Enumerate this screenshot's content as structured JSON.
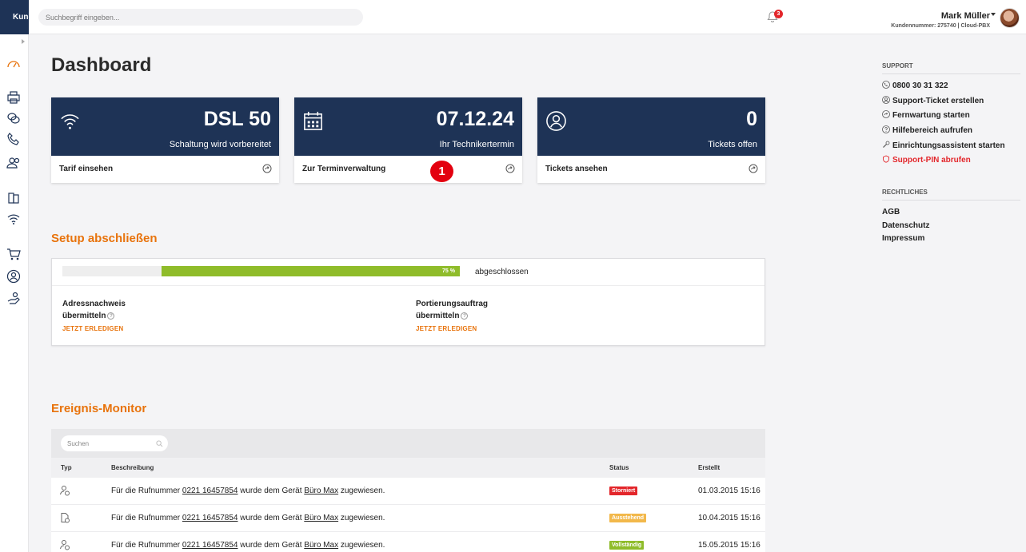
{
  "header": {
    "brand": "Kundenportal",
    "search_placeholder": "Suchbegriff eingeben...",
    "notification_count": "3",
    "user_name": "Mark Müller",
    "user_meta": "Kundennummer: 275740 | Cloud-PBX"
  },
  "page_title": "Dashboard",
  "cards": [
    {
      "icon": "wifi-icon",
      "value": "DSL 50",
      "subtitle": "Schaltung wird vorbereitet",
      "link": "Tarif einsehen"
    },
    {
      "icon": "calendar-icon",
      "value": "07.12.24",
      "subtitle": "Ihr Technikertermin",
      "link": "Zur Terminverwaltung"
    },
    {
      "icon": "user-circle-icon",
      "value": "0",
      "subtitle": "Tickets offen",
      "link": "Tickets ansehen"
    }
  ],
  "step_marker": "1",
  "setup": {
    "title": "Setup abschließen",
    "progress_label": "75 %",
    "progress_fraction": 0.75,
    "status_text": "abgeschlossen",
    "tasks": [
      {
        "title_line1": "Adressnachweis",
        "title_line2": "übermitteln",
        "action": "JETZT ERLEDIGEN"
      },
      {
        "title_line1": "Portierungsauftrag",
        "title_line2": "übermitteln",
        "action": "JETZT ERLEDIGEN"
      }
    ]
  },
  "monitor": {
    "title": "Ereignis-Monitor",
    "search_placeholder": "Suchen",
    "columns": {
      "type": "Typ",
      "description": "Beschreibung",
      "status": "Status",
      "created": "Erstellt"
    },
    "rows": [
      {
        "icon": "user-assign-icon",
        "prefix": "Für die Rufnummer",
        "number": "0221 16457854",
        "middle": "wurde dem Gerät",
        "device": "Büro Max",
        "suffix": "zugewiesen.",
        "status": "Storniert",
        "status_color": "#e3262b",
        "created": "01.03.2015 15:16"
      },
      {
        "icon": "document-icon",
        "prefix": "Für die Rufnummer",
        "number": "0221 16457854",
        "middle": "wurde dem Gerät",
        "device": "Büro Max",
        "suffix": "zugewiesen.",
        "status": "Ausstehend",
        "status_color": "#f2b84b",
        "created": "10.04.2015 15:16"
      },
      {
        "icon": "user-assign-icon",
        "prefix": "Für die Rufnummer",
        "number": "0221 16457854",
        "middle": "wurde dem Gerät",
        "device": "Büro Max",
        "suffix": "zugewiesen.",
        "status": "Vollständig",
        "status_color": "#8fbc2a",
        "created": "15.05.2015 15:16"
      }
    ]
  },
  "sidebar": {
    "support_heading": "SUPPORT",
    "support_links": [
      {
        "icon": "phone-icon",
        "label": "0800 30 31 322"
      },
      {
        "icon": "ticket-icon",
        "label": "Support-Ticket erstellen"
      },
      {
        "icon": "remote-icon",
        "label": "Fernwartung starten"
      },
      {
        "icon": "help-icon",
        "label": "Hilfebereich aufrufen"
      },
      {
        "icon": "wizard-icon",
        "label": "Einrichtungsassistent starten"
      },
      {
        "icon": "shield-icon",
        "label": "Support-PIN abrufen"
      }
    ],
    "legal_heading": "RECHTLICHES",
    "legal_links": [
      "AGB",
      "Datenschutz",
      "Impressum"
    ]
  },
  "colors": {
    "navy": "#1e3356",
    "accent_orange": "#e8730c",
    "progress_green": "#8fbc2a",
    "alert_red": "#e3262b"
  }
}
